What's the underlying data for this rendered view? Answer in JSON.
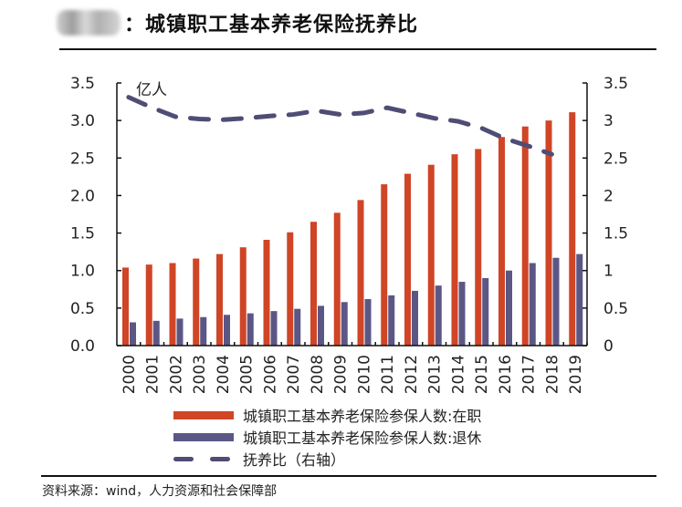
{
  "header": {
    "title": "：城镇职工基本养老保险抚养比",
    "blurred_prefix_icon": "blurred-logo"
  },
  "colors": {
    "employed": "#cf4526",
    "retired": "#5b5785",
    "ratio": "#4f4c75",
    "axis": "#111111"
  },
  "chart_data": {
    "type": "bar",
    "title": "城镇职工基本养老保险抚养比",
    "xlabel": "",
    "ylabel": "亿人",
    "y_unit_label": "亿人",
    "categories": [
      "2000",
      "2001",
      "2002",
      "2003",
      "2004",
      "2005",
      "2006",
      "2007",
      "2008",
      "2009",
      "2010",
      "2011",
      "2012",
      "2013",
      "2014",
      "2015",
      "2016",
      "2017",
      "2018",
      "2019"
    ],
    "ylim": [
      0,
      3.5
    ],
    "y2lim": [
      0,
      3.5
    ],
    "yticks": [
      "0.0",
      "0.5",
      "1.0",
      "1.5",
      "2.0",
      "2.5",
      "3.0",
      "3.5"
    ],
    "y2ticks": [
      "0",
      "0.5",
      "1",
      "1.5",
      "2",
      "2.5",
      "3",
      "3.5"
    ],
    "grid": false,
    "legend_position": "bottom",
    "series": [
      {
        "name": "城镇职工基本养老保险参保人数:在职",
        "type": "bar",
        "axis": "left",
        "values": [
          1.04,
          1.08,
          1.1,
          1.16,
          1.22,
          1.31,
          1.41,
          1.51,
          1.65,
          1.77,
          1.94,
          2.15,
          2.29,
          2.41,
          2.55,
          2.62,
          2.78,
          2.92,
          3.0,
          3.11
        ]
      },
      {
        "name": "城镇职工基本养老保险参保人数:退休",
        "type": "bar",
        "axis": "left",
        "values": [
          0.31,
          0.33,
          0.36,
          0.38,
          0.41,
          0.43,
          0.46,
          0.49,
          0.53,
          0.58,
          0.62,
          0.67,
          0.73,
          0.8,
          0.85,
          0.9,
          1.0,
          1.1,
          1.17,
          1.22
        ]
      },
      {
        "name": "抚养比（右轴）",
        "type": "line",
        "style": "dashed",
        "axis": "right",
        "values": [
          3.31,
          3.17,
          3.05,
          3.02,
          3.01,
          3.03,
          3.06,
          3.08,
          3.13,
          3.08,
          3.1,
          3.17,
          3.1,
          3.03,
          2.99,
          2.9,
          2.76,
          2.66,
          2.55,
          null
        ]
      }
    ]
  },
  "legend": {
    "items": [
      {
        "label": "城镇职工基本养老保险参保人数:在职",
        "icon": "red-bar-swatch"
      },
      {
        "label": "城镇职工基本养老保险参保人数:退休",
        "icon": "purple-bar-swatch"
      },
      {
        "label": "抚养比（右轴）",
        "icon": "dashed-line-swatch"
      }
    ]
  },
  "footer": {
    "source": "资料来源：wind，人力资源和社会保障部"
  }
}
